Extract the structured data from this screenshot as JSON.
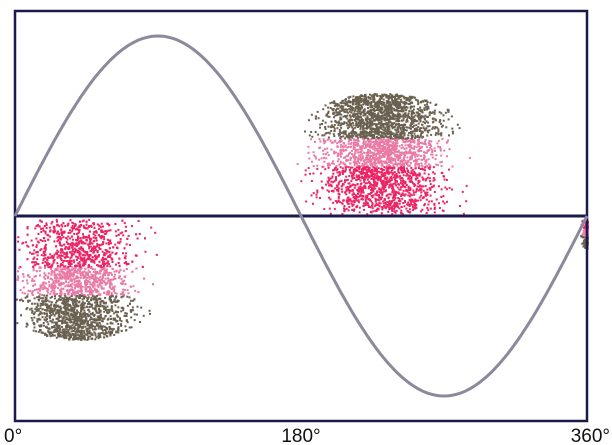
{
  "chart_data": {
    "type": "scatter",
    "title": "",
    "xlabel": "",
    "ylabel": "",
    "x_unit": "degrees",
    "xlim": [
      0,
      360
    ],
    "ylim": [
      -1.1,
      1.1
    ],
    "x_ticks": [
      {
        "value": 0,
        "label": "0°"
      },
      {
        "value": 180,
        "label": "180°"
      },
      {
        "value": 360,
        "label": "360°"
      }
    ],
    "reference_line": {
      "y": 0
    },
    "sine_wave": {
      "amplitude": 1.0,
      "period_degrees": 360,
      "phase_degrees": 0,
      "color": "#8a8a9c"
    },
    "point_clouds": [
      {
        "phase_from": 170,
        "phase_to": 310,
        "peak_phase": 230,
        "peak_height": 0.62,
        "polarity": "positive"
      },
      {
        "phase_from": 0,
        "phase_to": 125,
        "peak_phase": 40,
        "peak_height": 0.62,
        "polarity": "negative"
      },
      {
        "phase_from": 350,
        "phase_to": 360,
        "peak_phase": 360,
        "peak_height": 0.15,
        "polarity": "negative"
      }
    ],
    "density_colors": {
      "low": "#6b6150",
      "mid": "#e97aa6",
      "high": "#ec2565"
    },
    "frame_color": "#1b1a4a",
    "grid": false
  }
}
